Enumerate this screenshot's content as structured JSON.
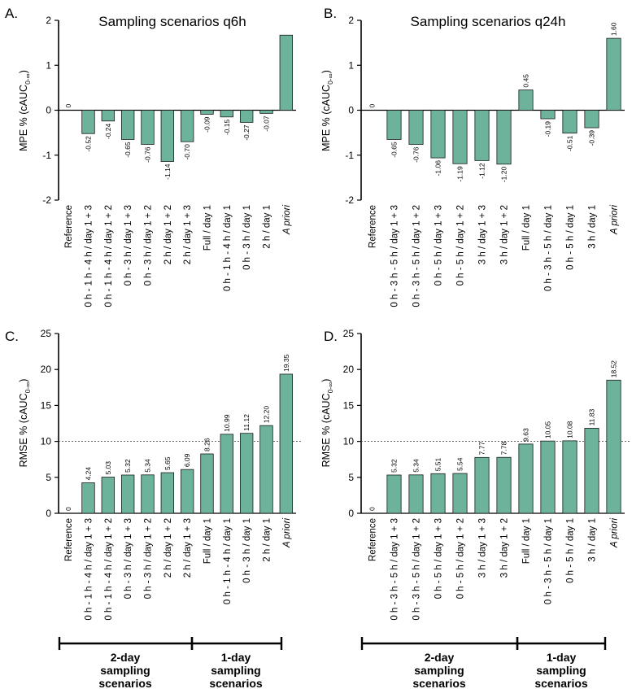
{
  "figure": {
    "group_labels": {
      "two_day": [
        "2-day",
        "sampling",
        "scenarios"
      ],
      "one_day": [
        "1-day",
        "sampling",
        "scenarios"
      ]
    }
  },
  "colors": {
    "bar": "#6DB39B",
    "bar_stroke": "#1a1a1a"
  },
  "chart_data": [
    {
      "panel": "A.",
      "type": "bar",
      "title": "Sampling scenarios q6h",
      "ylabel_main": "MPE % (cAUC",
      "ylabel_sub": "0-∞",
      "ylabel_close": ")",
      "ylim": [
        -2,
        2
      ],
      "yticks": [
        -2,
        -1,
        0,
        1,
        2
      ],
      "categories": [
        "Reference",
        "0 h - 1 h - 4 h / day 1 + 3",
        "0 h - 1 h - 4 h / day 1 + 2",
        "0 h - 3 h / day 1 + 3",
        "0 h - 3 h / day 1 + 2",
        "2 h / day 1 + 2",
        "2 h / day 1 + 3",
        "Full / day 1",
        "0 h - 1 h - 4 h / day 1",
        "0 h - 3 h / day 1",
        "2 h / day 1",
        "A priori"
      ],
      "italic_categories": [
        "A priori"
      ],
      "values": [
        0,
        -0.52,
        -0.24,
        -0.65,
        -0.76,
        -1.14,
        -0.7,
        -0.09,
        -0.15,
        -0.27,
        -0.07,
        1.67
      ],
      "value_labels": [
        "0",
        "-0.52",
        "-0.24",
        "-0.65",
        "-0.76",
        "-1.14",
        "-0.70",
        "-0.09",
        "-0.15",
        "-0.27",
        "-0.07",
        ""
      ],
      "reference_line": null
    },
    {
      "panel": "B.",
      "type": "bar",
      "title": "Sampling scenarios q24h",
      "ylabel_main": "MPE % (cAUC",
      "ylabel_sub": "0-∞",
      "ylabel_close": ")",
      "ylim": [
        -2,
        2
      ],
      "yticks": [
        -2,
        -1,
        0,
        1,
        2
      ],
      "categories": [
        "Reference",
        "0 h - 3 h - 5 h / day 1 + 3",
        "0 h - 3 h - 5 h / day 1 + 2",
        "0 h - 5 h / day 1 + 3",
        "0 h - 5 h / day 1 + 2",
        "3 h / day 1 + 3",
        "3 h / day 1 + 2",
        "Full / day 1",
        "0 h - 3 h - 5 h / day 1",
        "0 h - 5 h / day 1",
        "3 h / day 1",
        "A priori"
      ],
      "italic_categories": [
        "A priori"
      ],
      "values": [
        0,
        -0.65,
        -0.76,
        -1.06,
        -1.19,
        -1.12,
        -1.2,
        0.45,
        -0.19,
        -0.51,
        -0.39,
        1.6
      ],
      "value_labels": [
        "0",
        "-0.65",
        "-0.76",
        "-1.06",
        "-1.19",
        "-1.12",
        "-1.20",
        "0.45",
        "-0.19",
        "-0.51",
        "-0.39",
        "1.60"
      ],
      "reference_line": null
    },
    {
      "panel": "C.",
      "type": "bar",
      "title": "",
      "ylabel_main": "RMSE % (cAUC",
      "ylabel_sub": "0-∞",
      "ylabel_close": ")",
      "ylim": [
        0,
        25
      ],
      "yticks": [
        0,
        5,
        10,
        15,
        20,
        25
      ],
      "categories": [
        "Reference",
        "0 h - 1 h - 4 h / day 1 + 3",
        "0 h - 1 h - 4 h / day 1 + 2",
        "0 h - 3 h / day 1 + 3",
        "0 h - 3 h / day 1 + 2",
        "2 h / day 1 + 2",
        "2 h / day 1 + 3",
        "Full / day 1",
        "0 h - 1 h - 4 h / day 1",
        "0 h - 3 h / day 1",
        "2 h / day 1",
        "A priori"
      ],
      "italic_categories": [
        "A priori"
      ],
      "values": [
        0,
        4.24,
        5.03,
        5.32,
        5.34,
        5.65,
        6.09,
        8.26,
        10.99,
        11.12,
        12.2,
        19.35
      ],
      "value_labels": [
        "0",
        "4.24",
        "5.03",
        "5.32",
        "5.34",
        "5.65",
        "6.09",
        "8.26",
        "10.99",
        "11.12",
        "12.20",
        "19.35"
      ],
      "reference_line": 10
    },
    {
      "panel": "D.",
      "type": "bar",
      "title": "",
      "ylabel_main": "RMSE % (cAUC",
      "ylabel_sub": "0-∞",
      "ylabel_close": ")",
      "ylim": [
        0,
        25
      ],
      "yticks": [
        0,
        5,
        10,
        15,
        20,
        25
      ],
      "categories": [
        "Reference",
        "0 h - 3 h - 5 h / day 1 + 3",
        "0 h - 3 h - 5 h / day 1 + 2",
        "0 h - 5 h / day 1 + 3",
        "0 h - 5 h / day 1 + 2",
        "3 h / day 1 + 3",
        "3 h / day 1 + 2",
        "Full / day 1",
        "0 h - 3 h - 5 h / day 1",
        "0 h - 5 h / day 1",
        "3 h / day 1",
        "A priori"
      ],
      "italic_categories": [
        "A priori"
      ],
      "values": [
        0,
        5.32,
        5.34,
        5.51,
        5.54,
        7.77,
        7.78,
        9.63,
        10.05,
        10.08,
        11.83,
        18.52
      ],
      "value_labels": [
        "0",
        "5.32",
        "5.34",
        "5.51",
        "5.54",
        "7.77",
        "7.78",
        "9.63",
        "10.05",
        "10.08",
        "11.83",
        "18.52"
      ],
      "reference_line": 10
    }
  ]
}
